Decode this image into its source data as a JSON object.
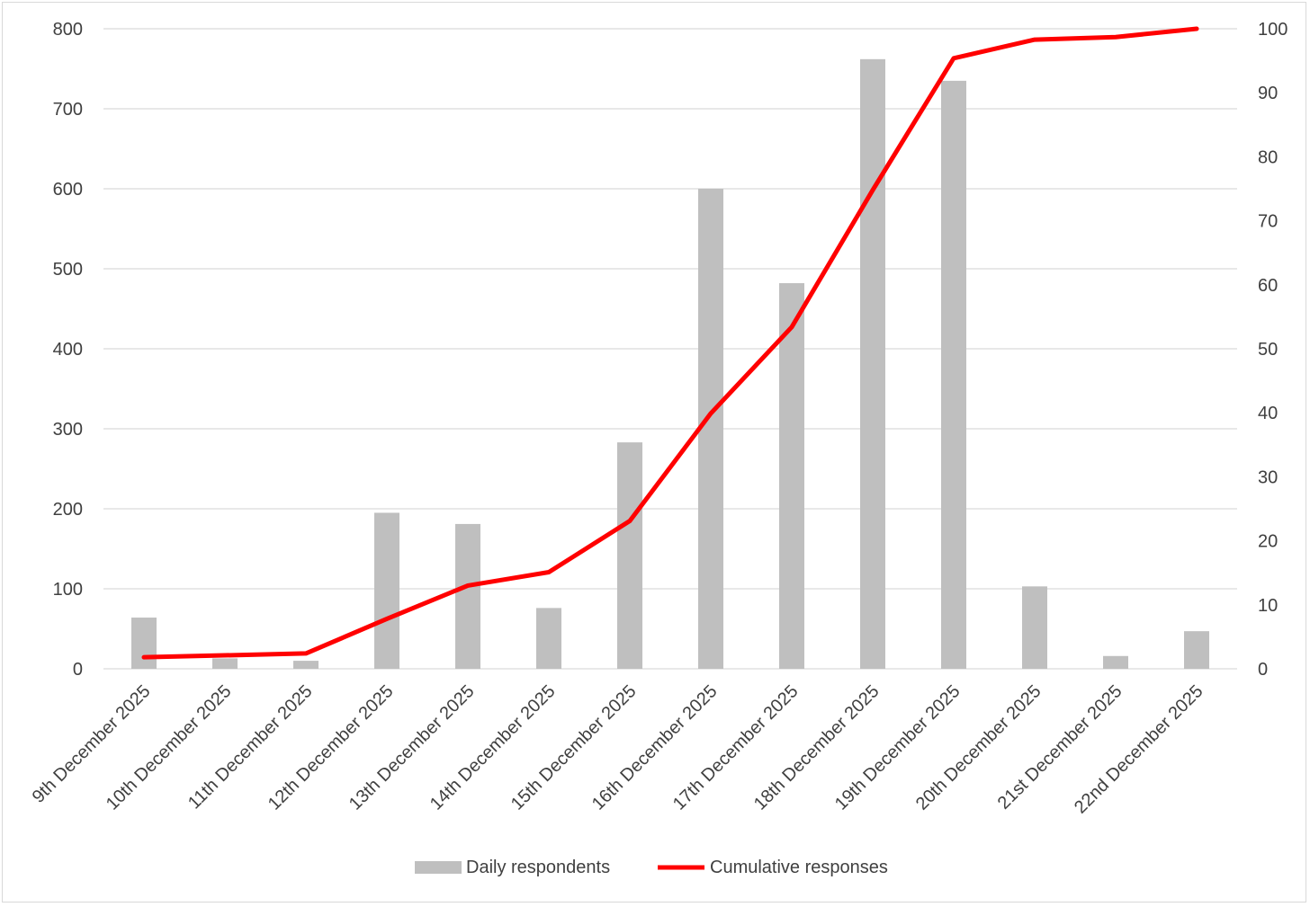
{
  "chart_data": {
    "type": "bar",
    "categories": [
      "9th December 2025",
      "10th December 2025",
      "11th December 2025",
      "12th December 2025",
      "13th December 2025",
      "14th December 2025",
      "15th December 2025",
      "16th December 2025",
      "17th December 2025",
      "18th December 2025",
      "19th December 2025",
      "20th December 2025",
      "21st December 2025",
      "22nd December 2025"
    ],
    "series": [
      {
        "name": "Daily respondents",
        "type": "bar",
        "axis": "left",
        "color": "#bfbfbf",
        "values": [
          64,
          13,
          10,
          195,
          181,
          76,
          283,
          600,
          482,
          762,
          735,
          103,
          16,
          47
        ]
      },
      {
        "name": "Cumulative responses",
        "type": "line",
        "axis": "right",
        "color": "#ff0000",
        "values": [
          1.8,
          2.1,
          2.4,
          7.8,
          13.0,
          15.1,
          23.1,
          39.9,
          53.4,
          74.8,
          95.4,
          98.3,
          98.7,
          100
        ]
      }
    ],
    "ylim": [
      0,
      800
    ],
    "yticks": [
      0,
      100,
      200,
      300,
      400,
      500,
      600,
      700,
      800
    ],
    "y2lim": [
      0,
      100
    ],
    "y2ticks": [
      0,
      10,
      20,
      30,
      40,
      50,
      60,
      70,
      80,
      90,
      100
    ],
    "grid": true,
    "legend": "bottom-center"
  }
}
